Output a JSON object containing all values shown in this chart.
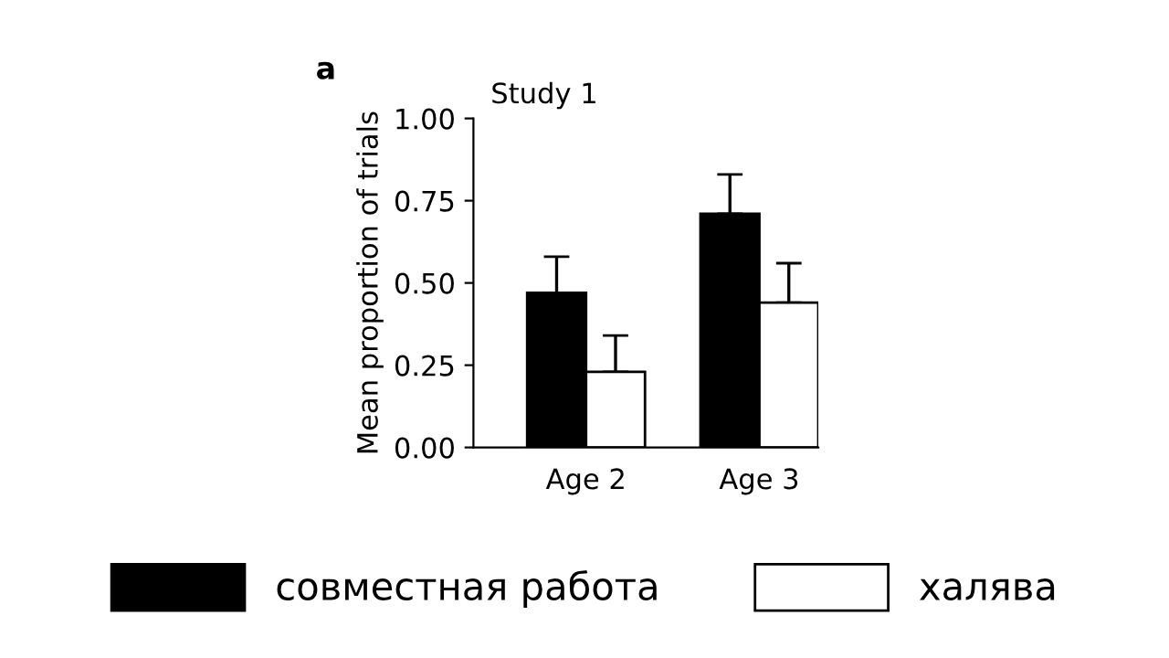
{
  "chart_data": {
    "type": "bar",
    "title": "Study 1",
    "ylabel": "Mean proportion of trials",
    "categories": [
      "Age 2",
      "Age 3"
    ],
    "series": [
      {
        "name": "совместная работа",
        "color": "#000000",
        "values": [
          0.47,
          0.71
        ],
        "errors": [
          [
            0.47,
            0.58
          ],
          [
            0.71,
            0.83
          ]
        ]
      },
      {
        "name": "халява",
        "color": "#ffffff",
        "values": [
          0.23,
          0.44
        ],
        "errors": [
          [
            0.23,
            0.34
          ],
          [
            0.44,
            0.56
          ]
        ]
      }
    ],
    "ylim": [
      0,
      1
    ],
    "yticks": [
      {
        "value": 0,
        "label": "0.00"
      },
      {
        "value": 0.25,
        "label": "0.25"
      },
      {
        "value": 0.5,
        "label": "0.50"
      },
      {
        "value": 0.75,
        "label": "0.75"
      },
      {
        "value": 1,
        "label": "1.00"
      }
    ],
    "annotations": [
      "a"
    ],
    "legend": "bottom",
    "grid": false
  }
}
